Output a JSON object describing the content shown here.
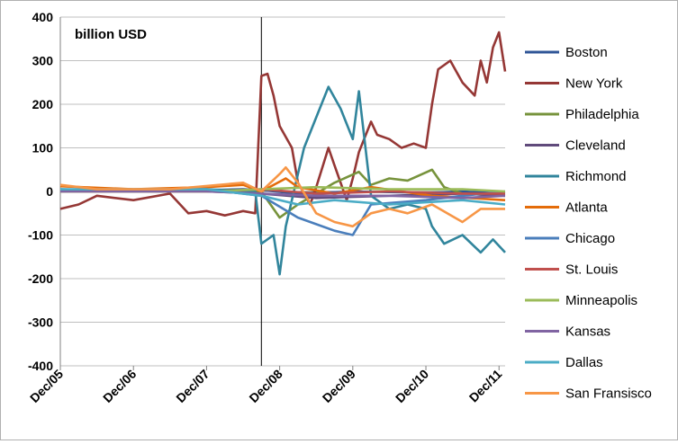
{
  "chart_data": {
    "type": "line",
    "unit_label": "billion USD",
    "ylim": [
      -400,
      400
    ],
    "y_ticks": [
      400,
      300,
      200,
      100,
      0,
      -100,
      -200,
      -300,
      -400
    ],
    "x_range": [
      "2005-12",
      "2012-01"
    ],
    "x_ticks": [
      "Dec/05",
      "Dec/06",
      "Dec/07",
      "Dec/08",
      "Dec/09",
      "Dec/10",
      "Dec/11"
    ],
    "vertical_marker": "2008-09",
    "grid": "horizontal",
    "legend_position": "right",
    "series": [
      {
        "name": "Boston",
        "color": "#2f5597",
        "points": [
          [
            "2005-12",
            2
          ],
          [
            "2006-12",
            0
          ],
          [
            "2007-12",
            3
          ],
          [
            "2008-06",
            5
          ],
          [
            "2008-09",
            3
          ],
          [
            "2009-03",
            -5
          ],
          [
            "2009-12",
            0
          ],
          [
            "2010-12",
            -3
          ],
          [
            "2011-06",
            0
          ],
          [
            "2012-01",
            -5
          ]
        ]
      },
      {
        "name": "New York",
        "color": "#953735",
        "points": [
          [
            "2005-12",
            -40
          ],
          [
            "2006-03",
            -30
          ],
          [
            "2006-06",
            -10
          ],
          [
            "2006-12",
            -20
          ],
          [
            "2007-06",
            -5
          ],
          [
            "2007-09",
            -50
          ],
          [
            "2007-12",
            -45
          ],
          [
            "2008-03",
            -55
          ],
          [
            "2008-06",
            -45
          ],
          [
            "2008-08",
            -50
          ],
          [
            "2008-09",
            265
          ],
          [
            "2008-10",
            270
          ],
          [
            "2008-11",
            220
          ],
          [
            "2008-12",
            150
          ],
          [
            "2009-02",
            100
          ],
          [
            "2009-03",
            20
          ],
          [
            "2009-05",
            -30
          ],
          [
            "2009-06",
            10
          ],
          [
            "2009-08",
            100
          ],
          [
            "2009-09",
            60
          ],
          [
            "2009-11",
            -20
          ],
          [
            "2009-12",
            30
          ],
          [
            "2010-01",
            90
          ],
          [
            "2010-03",
            160
          ],
          [
            "2010-04",
            130
          ],
          [
            "2010-06",
            120
          ],
          [
            "2010-08",
            100
          ],
          [
            "2010-10",
            110
          ],
          [
            "2010-12",
            100
          ],
          [
            "2011-01",
            200
          ],
          [
            "2011-02",
            280
          ],
          [
            "2011-04",
            300
          ],
          [
            "2011-06",
            250
          ],
          [
            "2011-08",
            220
          ],
          [
            "2011-09",
            300
          ],
          [
            "2011-10",
            250
          ],
          [
            "2011-11",
            330
          ],
          [
            "2011-12",
            365
          ],
          [
            "2012-01",
            275
          ]
        ]
      },
      {
        "name": "Philadelphia",
        "color": "#77933c",
        "points": [
          [
            "2005-12",
            0
          ],
          [
            "2007-12",
            2
          ],
          [
            "2008-09",
            0
          ],
          [
            "2008-12",
            -60
          ],
          [
            "2009-03",
            -30
          ],
          [
            "2009-09",
            20
          ],
          [
            "2010-01",
            45
          ],
          [
            "2010-03",
            15
          ],
          [
            "2010-06",
            30
          ],
          [
            "2010-09",
            25
          ],
          [
            "2011-01",
            50
          ],
          [
            "2011-03",
            10
          ],
          [
            "2011-06",
            -5
          ],
          [
            "2012-01",
            -10
          ]
        ]
      },
      {
        "name": "Cleveland",
        "color": "#604a7b",
        "points": [
          [
            "2005-12",
            0
          ],
          [
            "2007-12",
            0
          ],
          [
            "2008-09",
            -5
          ],
          [
            "2009-06",
            -15
          ],
          [
            "2010-06",
            -10
          ],
          [
            "2011-06",
            -5
          ],
          [
            "2012-01",
            -10
          ]
        ]
      },
      {
        "name": "Richmond",
        "color": "#31859c",
        "points": [
          [
            "2005-12",
            5
          ],
          [
            "2006-12",
            0
          ],
          [
            "2007-12",
            5
          ],
          [
            "2008-08",
            0
          ],
          [
            "2008-09",
            -120
          ],
          [
            "2008-11",
            -100
          ],
          [
            "2008-12",
            -190
          ],
          [
            "2009-01",
            -80
          ],
          [
            "2009-03",
            40
          ],
          [
            "2009-04",
            100
          ],
          [
            "2009-06",
            170
          ],
          [
            "2009-08",
            240
          ],
          [
            "2009-10",
            190
          ],
          [
            "2009-12",
            120
          ],
          [
            "2010-01",
            230
          ],
          [
            "2010-03",
            -10
          ],
          [
            "2010-06",
            -40
          ],
          [
            "2010-09",
            -30
          ],
          [
            "2010-12",
            -40
          ],
          [
            "2011-01",
            -80
          ],
          [
            "2011-03",
            -120
          ],
          [
            "2011-06",
            -100
          ],
          [
            "2011-09",
            -140
          ],
          [
            "2011-11",
            -110
          ],
          [
            "2012-01",
            -140
          ]
        ]
      },
      {
        "name": "Atlanta",
        "color": "#e46c0a",
        "points": [
          [
            "2005-12",
            12
          ],
          [
            "2006-12",
            5
          ],
          [
            "2007-12",
            10
          ],
          [
            "2008-06",
            15
          ],
          [
            "2008-09",
            0
          ],
          [
            "2009-01",
            30
          ],
          [
            "2009-03",
            10
          ],
          [
            "2009-09",
            -5
          ],
          [
            "2010-03",
            10
          ],
          [
            "2011-01",
            -10
          ],
          [
            "2012-01",
            -20
          ]
        ]
      },
      {
        "name": "Chicago",
        "color": "#4a7ebb",
        "points": [
          [
            "2005-12",
            0
          ],
          [
            "2007-12",
            5
          ],
          [
            "2008-09",
            -10
          ],
          [
            "2009-03",
            -60
          ],
          [
            "2009-09",
            -90
          ],
          [
            "2009-12",
            -100
          ],
          [
            "2010-03",
            -30
          ],
          [
            "2010-12",
            -20
          ],
          [
            "2011-06",
            -10
          ],
          [
            "2012-01",
            0
          ]
        ]
      },
      {
        "name": "St. Louis",
        "color": "#c0504d",
        "points": [
          [
            "2005-12",
            0
          ],
          [
            "2007-12",
            0
          ],
          [
            "2008-09",
            5
          ],
          [
            "2009-06",
            -5
          ],
          [
            "2010-06",
            0
          ],
          [
            "2011-06",
            -5
          ],
          [
            "2012-01",
            -5
          ]
        ]
      },
      {
        "name": "Minneapolis",
        "color": "#9bbb59",
        "points": [
          [
            "2005-12",
            0
          ],
          [
            "2007-12",
            0
          ],
          [
            "2008-09",
            5
          ],
          [
            "2009-06",
            10
          ],
          [
            "2010-06",
            5
          ],
          [
            "2011-06",
            5
          ],
          [
            "2012-01",
            0
          ]
        ]
      },
      {
        "name": "Kansas",
        "color": "#8064a2",
        "points": [
          [
            "2005-12",
            0
          ],
          [
            "2007-12",
            0
          ],
          [
            "2008-09",
            -5
          ],
          [
            "2009-06",
            -10
          ],
          [
            "2010-06",
            -10
          ],
          [
            "2011-06",
            -15
          ],
          [
            "2012-01",
            -10
          ]
        ]
      },
      {
        "name": "Dallas",
        "color": "#4bacc6",
        "points": [
          [
            "2005-12",
            5
          ],
          [
            "2007-12",
            5
          ],
          [
            "2008-09",
            -10
          ],
          [
            "2009-03",
            -30
          ],
          [
            "2009-09",
            -20
          ],
          [
            "2010-06",
            -30
          ],
          [
            "2011-06",
            -20
          ],
          [
            "2012-01",
            -30
          ]
        ]
      },
      {
        "name": "San Fransisco",
        "color": "#f79646",
        "points": [
          [
            "2005-12",
            15
          ],
          [
            "2006-06",
            5
          ],
          [
            "2007-06",
            5
          ],
          [
            "2008-06",
            20
          ],
          [
            "2008-09",
            0
          ],
          [
            "2008-12",
            40
          ],
          [
            "2009-01",
            55
          ],
          [
            "2009-03",
            20
          ],
          [
            "2009-06",
            -50
          ],
          [
            "2009-09",
            -70
          ],
          [
            "2009-12",
            -80
          ],
          [
            "2010-03",
            -50
          ],
          [
            "2010-06",
            -40
          ],
          [
            "2010-09",
            -50
          ],
          [
            "2011-01",
            -30
          ],
          [
            "2011-06",
            -70
          ],
          [
            "2011-09",
            -40
          ],
          [
            "2012-01",
            -40
          ]
        ]
      }
    ]
  }
}
